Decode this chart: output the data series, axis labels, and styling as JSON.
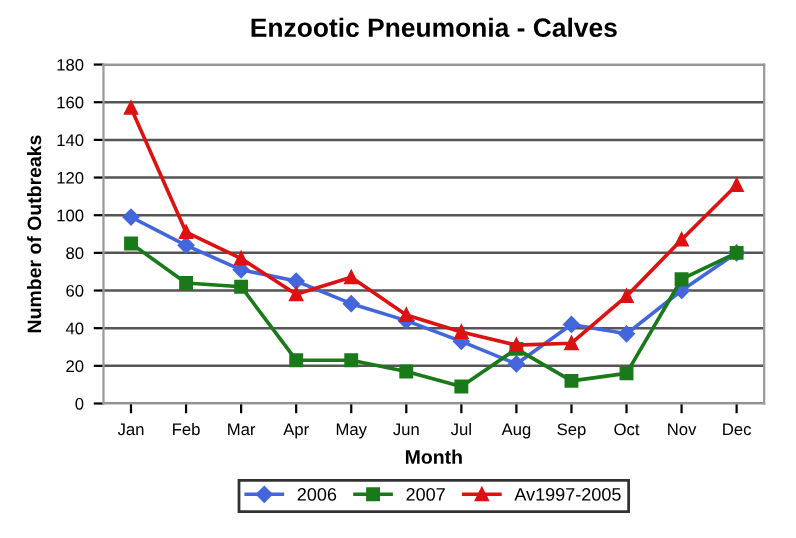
{
  "chart_data": {
    "type": "line",
    "title": "Enzootic Pneumonia - Calves",
    "xlabel": "Month",
    "ylabel": "Number of Outbreaks",
    "categories": [
      "Jan",
      "Feb",
      "Mar",
      "Apr",
      "May",
      "Jun",
      "Jul",
      "Aug",
      "Sep",
      "Oct",
      "Nov",
      "Dec"
    ],
    "series": [
      {
        "name": "2006",
        "color": "#4466dd",
        "marker": "diamond",
        "values": [
          99,
          84,
          71,
          65,
          53,
          44,
          33,
          21,
          42,
          37,
          60,
          80
        ]
      },
      {
        "name": "2007",
        "color": "#1a7a1a",
        "marker": "square",
        "values": [
          85,
          64,
          62,
          23,
          23,
          17,
          9,
          29,
          12,
          16,
          66,
          80
        ]
      },
      {
        "name": "Av1997-2005",
        "color": "#dd1111",
        "marker": "triangle",
        "values": [
          157,
          91,
          77,
          58,
          67,
          47,
          38,
          31,
          32,
          57,
          87,
          116
        ]
      }
    ],
    "ylim": [
      0,
      180
    ],
    "yticks": [
      0,
      20,
      40,
      60,
      80,
      100,
      120,
      140,
      160,
      180
    ],
    "grid": "y",
    "legend": "bottom"
  }
}
